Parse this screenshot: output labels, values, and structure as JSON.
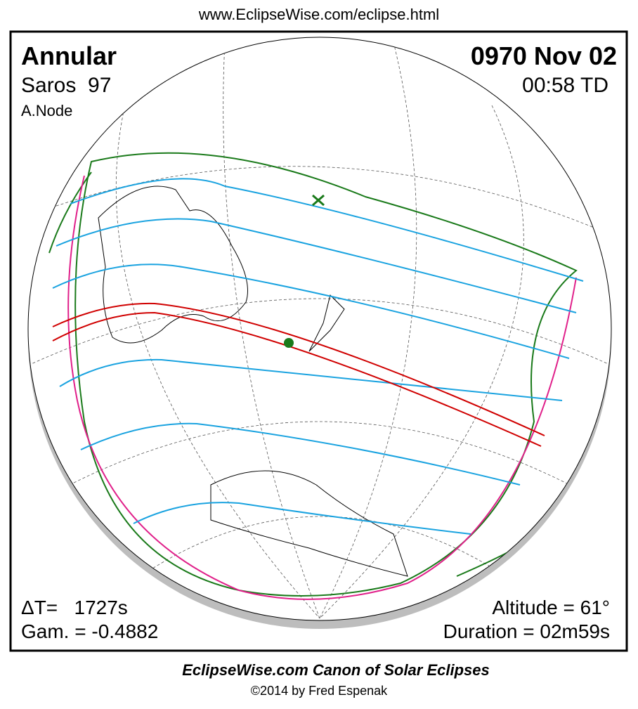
{
  "header": {
    "url": "www.EclipseWise.com/eclipse.html"
  },
  "eclipse": {
    "type": "Annular",
    "saros": "Saros  97",
    "node": "A.Node",
    "date": "0970 Nov 02",
    "time": "00:58 TD",
    "delta_t": "ΔT=   1727s",
    "gamma": "Gam. = -0.4882",
    "altitude": "Altitude = 61°",
    "duration": "Duration = 02m59s"
  },
  "footer": {
    "title": "EclipseWise.com Canon of Solar Eclipses",
    "copyright": "©2014 by Fred Espenak"
  }
}
